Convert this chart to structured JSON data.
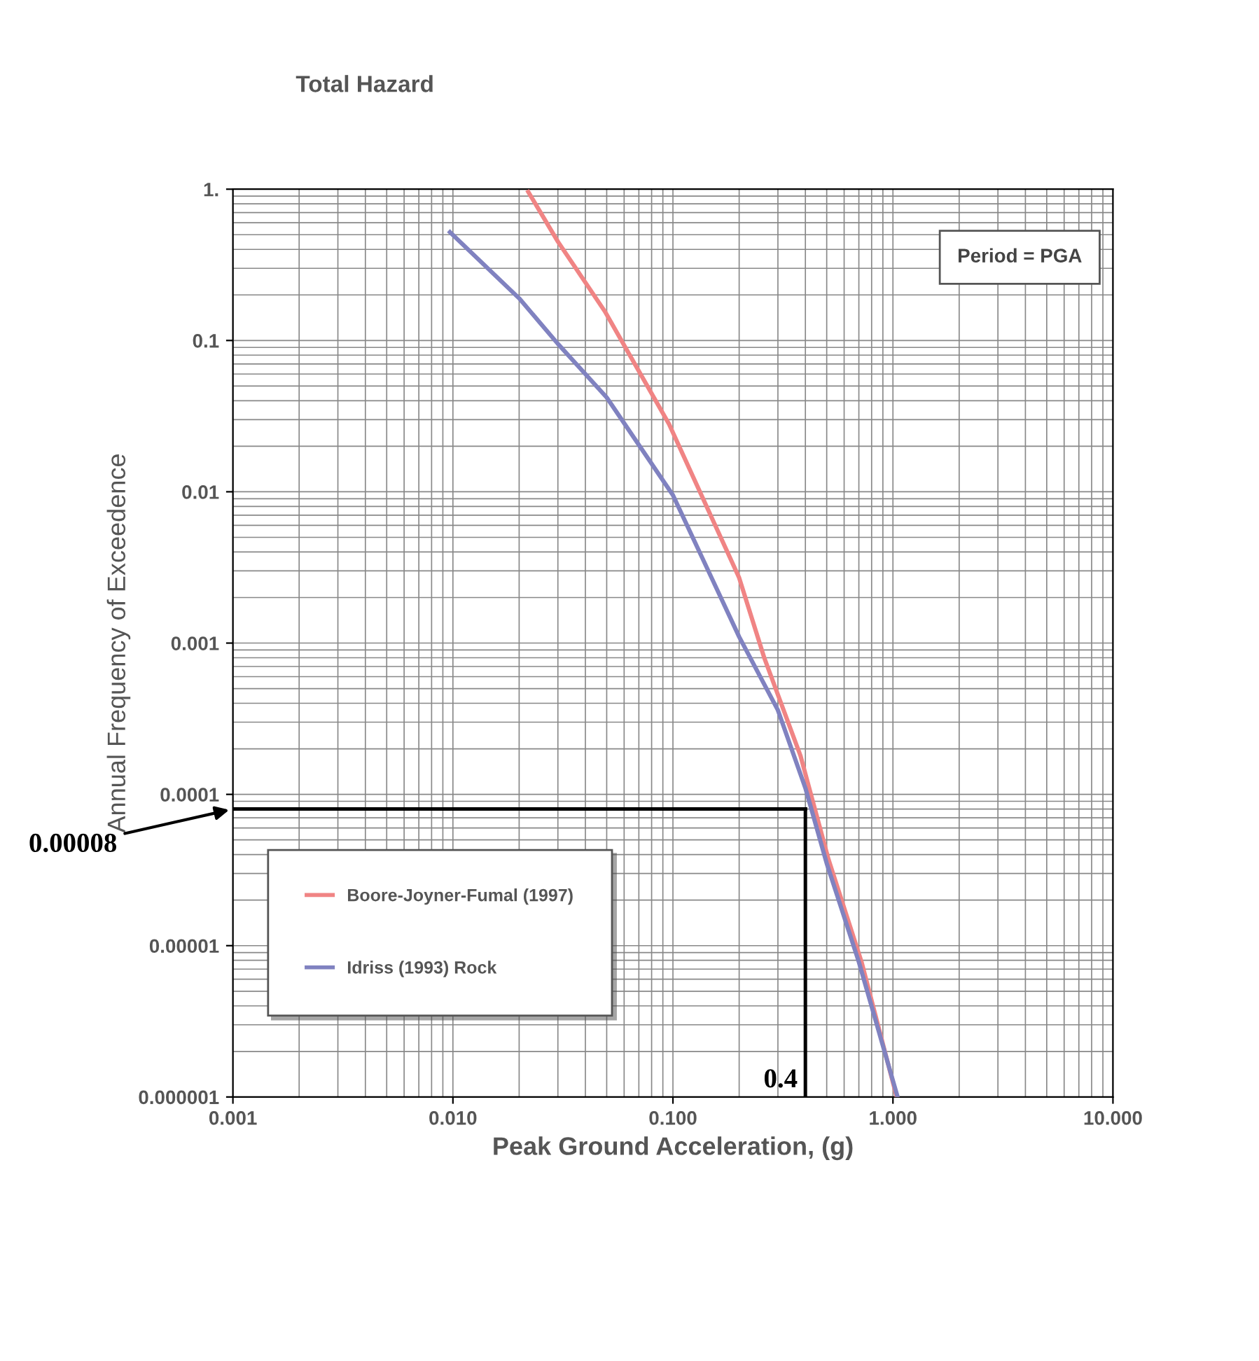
{
  "chart_data": {
    "type": "line",
    "title": "Total Hazard",
    "xlabel": "Peak Ground Acceleration, (g)",
    "ylabel": "Annual Frequency of Exceedence",
    "annotations": [
      "Period = PGA"
    ],
    "log": "xy",
    "xlim": [
      0.001,
      10
    ],
    "ylim": [
      1e-06,
      1
    ],
    "xticks": [
      {
        "value": 0.001,
        "label": "0.001"
      },
      {
        "value": 0.01,
        "label": "0.010"
      },
      {
        "value": 0.1,
        "label": "0.100"
      },
      {
        "value": 1,
        "label": "1.000"
      },
      {
        "value": 10,
        "label": "10.000"
      }
    ],
    "yticks": [
      {
        "value": 1e-06,
        "label": "0.000001"
      },
      {
        "value": 1e-05,
        "label": "0.00001"
      },
      {
        "value": 0.0001,
        "label": "0.0001"
      },
      {
        "value": 0.001,
        "label": "0.001"
      },
      {
        "value": 0.01,
        "label": "0.01"
      },
      {
        "value": 0.1,
        "label": "0.1"
      },
      {
        "value": 1,
        "label": "1."
      }
    ],
    "grid": true,
    "legend": "bottom left",
    "marker": "none",
    "line_style": "solid",
    "series": [
      {
        "name": "Boore-Joyner-Fumal (1997)",
        "color": "#f08484",
        "x": [
          0.022,
          0.03,
          0.049,
          0.096,
          0.2,
          0.26,
          0.38,
          0.51,
          0.72,
          1.04
        ],
        "values": [
          0.96,
          0.45,
          0.156,
          0.028,
          0.0027,
          0.0008,
          0.00018,
          3.7e-05,
          7.8e-06,
          1e-06
        ]
      },
      {
        "name": "Idriss (1993) Rock",
        "color": "#8082c0",
        "x": [
          0.0097,
          0.02,
          0.03,
          0.05,
          0.1,
          0.2,
          0.3,
          0.4,
          0.5,
          0.7,
          1.05
        ],
        "values": [
          0.52,
          0.19,
          0.095,
          0.042,
          0.0095,
          0.0011,
          0.00036,
          0.00011,
          3.5e-05,
          7.8e-06,
          1e-06
        ]
      }
    ],
    "ref_lines": [
      {
        "axis": "y",
        "value": 8e-05,
        "label": "0.00008",
        "color": "#000000"
      },
      {
        "axis": "x",
        "value": 0.4,
        "label": "0.4",
        "color": "#000000"
      }
    ]
  }
}
